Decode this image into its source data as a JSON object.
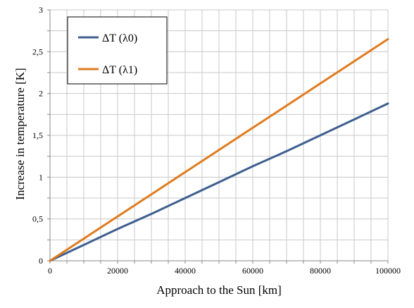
{
  "chart_data": {
    "type": "line",
    "title": "",
    "xlabel": "Approach to the Sun [km]",
    "ylabel": "Increase in temperature [K]",
    "xlim": [
      0,
      100000
    ],
    "ylim": [
      0,
      3
    ],
    "x_ticks": [
      0,
      20000,
      40000,
      60000,
      80000,
      100000
    ],
    "x_tick_labels": [
      "0",
      "20000",
      "40000",
      "60000",
      "80000",
      "100000"
    ],
    "x_minor_step": 5000,
    "y_ticks": [
      0,
      0.5,
      1,
      1.5,
      2,
      2.5,
      3
    ],
    "y_tick_labels": [
      "0",
      "0,5",
      "1",
      "1,5",
      "2",
      "2,5",
      "3"
    ],
    "y_minor_step": 0.25,
    "grid": true,
    "legend_position": "top-left",
    "series": [
      {
        "name": "ΔT (λ0)",
        "color": "#3f5f8f",
        "x": [
          0,
          10000,
          20000,
          30000,
          40000,
          50000,
          60000,
          70000,
          80000,
          90000,
          100000
        ],
        "y": [
          0,
          0.19,
          0.38,
          0.56,
          0.75,
          0.94,
          1.13,
          1.31,
          1.5,
          1.69,
          1.88
        ]
      },
      {
        "name": "ΔT (λ1)",
        "color": "#e07b1f",
        "x": [
          0,
          10000,
          20000,
          30000,
          40000,
          50000,
          60000,
          70000,
          80000,
          90000,
          100000
        ],
        "y": [
          0,
          0.265,
          0.53,
          0.795,
          1.06,
          1.325,
          1.59,
          1.855,
          2.12,
          2.385,
          2.65
        ]
      }
    ]
  }
}
